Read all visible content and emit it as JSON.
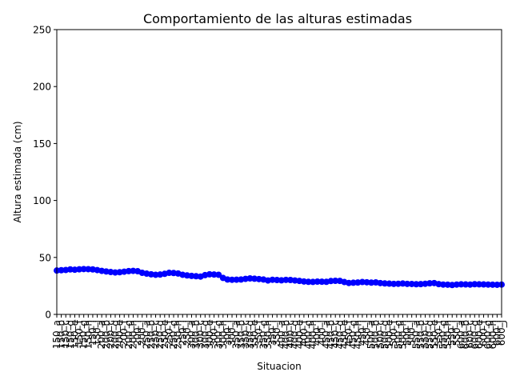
{
  "chart_data": {
    "type": "line",
    "title": "Comportamiento de las alturas estimadas",
    "xlabel": "Situacion",
    "ylabel": "Altura estimada (cm)",
    "ylim": [
      0,
      250
    ],
    "yticks": [
      0,
      50,
      100,
      150,
      200,
      250
    ],
    "grid": false,
    "legend": "none",
    "color": "#0000ff",
    "categories": [
      "150_a",
      "150_b",
      "150_c",
      "150_d",
      "150_e",
      "150_f",
      "150_g",
      "150_h",
      "150_i",
      "150_j",
      "200_a",
      "200_b",
      "200_c",
      "200_d",
      "200_e",
      "200_f",
      "200_g",
      "200_h",
      "200_i",
      "200_j",
      "250_a",
      "250_b",
      "250_c",
      "250_d",
      "250_e",
      "250_f",
      "250_g",
      "250_h",
      "250_i",
      "250_j",
      "300_a",
      "300_b",
      "300_c",
      "300_d",
      "300_e",
      "300_f",
      "300_g",
      "300_h",
      "300_i",
      "300_j",
      "350_a",
      "350_b",
      "350_c",
      "350_d",
      "350_e",
      "350_f",
      "350_g",
      "350_h",
      "350_i",
      "350_j",
      "400_a",
      "400_b",
      "400_c",
      "400_d",
      "400_e",
      "400_f",
      "400_g",
      "400_h",
      "400_i",
      "400_j",
      "450_a",
      "450_b",
      "450_c",
      "450_d",
      "450_e",
      "450_f",
      "450_g",
      "450_h",
      "450_i",
      "450_j",
      "500_a",
      "500_b",
      "500_c",
      "500_d",
      "500_e",
      "500_f",
      "500_g",
      "500_h",
      "500_i",
      "500_j",
      "550_a",
      "550_b",
      "550_c",
      "550_d",
      "550_e",
      "550_f",
      "550_g",
      "550_h",
      "550_i",
      "550_j",
      "600_a",
      "600_b",
      "600_c",
      "600_d",
      "600_e",
      "600_f",
      "600_g",
      "600_h",
      "600_i",
      "600_j"
    ],
    "values": [
      38.5,
      38.8,
      39.0,
      39.5,
      39.2,
      39.6,
      39.8,
      39.7,
      39.5,
      38.9,
      38.2,
      37.7,
      37.2,
      36.8,
      37.0,
      37.5,
      38.0,
      38.2,
      37.9,
      36.5,
      35.8,
      35.2,
      34.8,
      35.0,
      35.6,
      36.5,
      36.3,
      35.9,
      34.8,
      34.2,
      33.8,
      33.5,
      33.2,
      34.5,
      35.2,
      35.0,
      34.8,
      32.0,
      30.6,
      30.4,
      30.5,
      30.6,
      31.2,
      31.6,
      31.3,
      31.0,
      30.6,
      29.8,
      30.4,
      30.2,
      29.9,
      30.3,
      30.2,
      29.8,
      29.4,
      28.9,
      28.6,
      28.5,
      28.8,
      28.7,
      28.6,
      29.3,
      29.5,
      29.4,
      28.4,
      27.6,
      27.8,
      28.0,
      28.4,
      28.2,
      27.9,
      28.1,
      27.5,
      27.2,
      27.0,
      26.8,
      26.9,
      27.1,
      26.8,
      26.7,
      26.5,
      26.6,
      26.9,
      27.3,
      27.5,
      26.6,
      26.2,
      26.1,
      25.8,
      26.2,
      26.4,
      26.3,
      26.2,
      26.5,
      26.4,
      26.3,
      26.2,
      26.1,
      26.0,
      26.2
    ]
  }
}
